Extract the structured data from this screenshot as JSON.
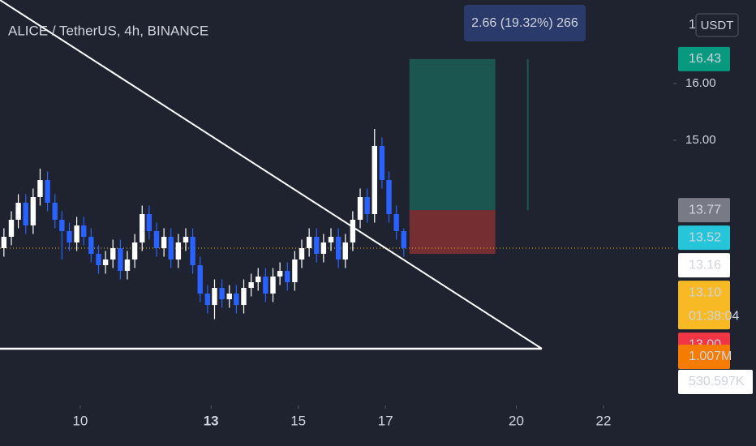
{
  "chart_data": {
    "type": "candlestick",
    "title": "ALICE / TetherUS, 4h, BINANCE",
    "currency": "USDT",
    "scale_mode": "1",
    "xlim": [
      8.16,
      23.6
    ],
    "xticks": [
      10,
      13,
      15,
      17,
      20,
      22
    ],
    "ylim": [
      10.33,
      17.47
    ],
    "yticks": [
      {
        "value": 16,
        "label": "16.00"
      },
      {
        "value": 15,
        "label": "15.00"
      }
    ],
    "up_color": "#ffffff",
    "down_color": "#2962ff",
    "x": [
      8.25,
      8.42,
      8.58,
      8.75,
      8.92,
      9.08,
      9.25,
      9.42,
      9.58,
      9.75,
      9.92,
      10.08,
      10.25,
      10.42,
      10.58,
      10.75,
      10.92,
      11.08,
      11.25,
      11.42,
      11.58,
      11.75,
      11.92,
      12.08,
      12.25,
      12.42,
      12.58,
      12.75,
      12.92,
      13.08,
      13.25,
      13.42,
      13.58,
      13.75,
      13.92,
      14.08,
      14.25,
      14.42,
      14.58,
      14.75,
      14.92,
      15.08,
      15.25,
      15.42,
      15.58,
      15.75,
      15.92,
      16.08,
      16.25,
      16.42,
      16.58,
      16.75,
      16.92,
      17.08,
      17.25,
      17.42
    ],
    "open": [
      13.1,
      13.3,
      13.6,
      13.9,
      13.5,
      14.0,
      14.3,
      13.9,
      13.6,
      13.4,
      13.2,
      13.5,
      13.3,
      13.0,
      12.8,
      12.9,
      13.1,
      12.7,
      12.9,
      13.2,
      13.7,
      13.4,
      13.1,
      13.3,
      12.9,
      13.2,
      13.3,
      12.8,
      12.3,
      12.1,
      12.4,
      12.2,
      12.3,
      12.1,
      12.4,
      12.5,
      12.6,
      12.3,
      12.6,
      12.7,
      12.5,
      12.9,
      13.1,
      13.3,
      13.0,
      13.2,
      13.3,
      12.9,
      13.2,
      13.6,
      14.0,
      13.7,
      14.9,
      14.3,
      13.7,
      13.4
    ],
    "high": [
      13.45,
      13.75,
      14.05,
      14.05,
      14.15,
      14.5,
      14.45,
      14.05,
      13.75,
      13.55,
      13.65,
      13.65,
      13.45,
      13.15,
      13.05,
      13.25,
      13.25,
      13.05,
      13.35,
      13.85,
      13.85,
      13.55,
      13.45,
      13.45,
      13.35,
      13.45,
      13.45,
      12.95,
      12.45,
      12.55,
      12.55,
      12.45,
      12.45,
      12.55,
      12.65,
      12.75,
      12.75,
      12.75,
      12.85,
      12.85,
      13.05,
      13.25,
      13.45,
      13.45,
      13.35,
      13.45,
      13.45,
      13.35,
      13.75,
      14.15,
      14.15,
      15.2,
      15.05,
      14.45,
      13.85,
      13.45
    ],
    "low": [
      12.95,
      13.15,
      13.45,
      13.35,
      13.35,
      13.85,
      13.75,
      13.45,
      12.9,
      13.05,
      13.05,
      13.15,
      12.85,
      12.65,
      12.65,
      12.75,
      12.55,
      12.55,
      12.75,
      13.05,
      13.25,
      12.95,
      12.95,
      12.75,
      12.75,
      13.05,
      12.65,
      12.15,
      11.95,
      11.85,
      12.05,
      12.05,
      11.95,
      11.95,
      12.25,
      12.35,
      12.15,
      12.15,
      12.45,
      12.35,
      12.35,
      12.75,
      12.95,
      12.85,
      12.85,
      13.05,
      12.75,
      12.75,
      13.05,
      13.45,
      13.55,
      13.55,
      14.15,
      13.55,
      13.25,
      12.95
    ],
    "close": [
      13.3,
      13.6,
      13.9,
      13.5,
      14.0,
      14.3,
      13.9,
      13.6,
      13.4,
      13.2,
      13.5,
      13.3,
      13.0,
      12.8,
      12.9,
      13.1,
      12.7,
      12.9,
      13.2,
      13.7,
      13.4,
      13.1,
      13.3,
      12.9,
      13.2,
      13.3,
      12.8,
      12.3,
      12.1,
      12.4,
      12.2,
      12.3,
      12.1,
      12.4,
      12.5,
      12.6,
      12.3,
      12.6,
      12.7,
      12.5,
      12.9,
      13.1,
      13.3,
      13.0,
      13.2,
      13.3,
      12.9,
      13.2,
      13.6,
      14.0,
      13.7,
      14.9,
      14.3,
      13.7,
      13.4,
      13.1
    ],
    "position": {
      "target": 16.43,
      "entry": 13.77,
      "stop": 13.0,
      "x": [
        17.55,
        19.52
      ],
      "label": "2.66 (19.32%) 266"
    },
    "price_labels": [
      {
        "value": 16.43,
        "label": "16.43",
        "color": "#089981",
        "text_color": "#ffffff"
      },
      {
        "value": 13.77,
        "label": "13.77",
        "color": "#787b86",
        "text_color": "#ffffff"
      },
      {
        "value": 13.52,
        "label": "13.52",
        "color": "#26c6da",
        "text_color": "#131722"
      },
      {
        "value": 13.16,
        "label": "13.16",
        "color": "#ffffff",
        "text_color": "#131722"
      },
      {
        "value": 13.1,
        "label": "13.10",
        "color": "#f7b924",
        "text_color": "#131722",
        "countdown": "01:38:04"
      },
      {
        "value": 13.0,
        "label": "13.00",
        "color": "#f23645",
        "text_color": "#ffffff"
      }
    ],
    "volume_labels": [
      {
        "label": "1.007M",
        "color": "#f57c00",
        "text_color": "#ffffff"
      },
      {
        "label": "530.597K",
        "color": "#ffffff",
        "text_color": "#131722"
      }
    ]
  }
}
